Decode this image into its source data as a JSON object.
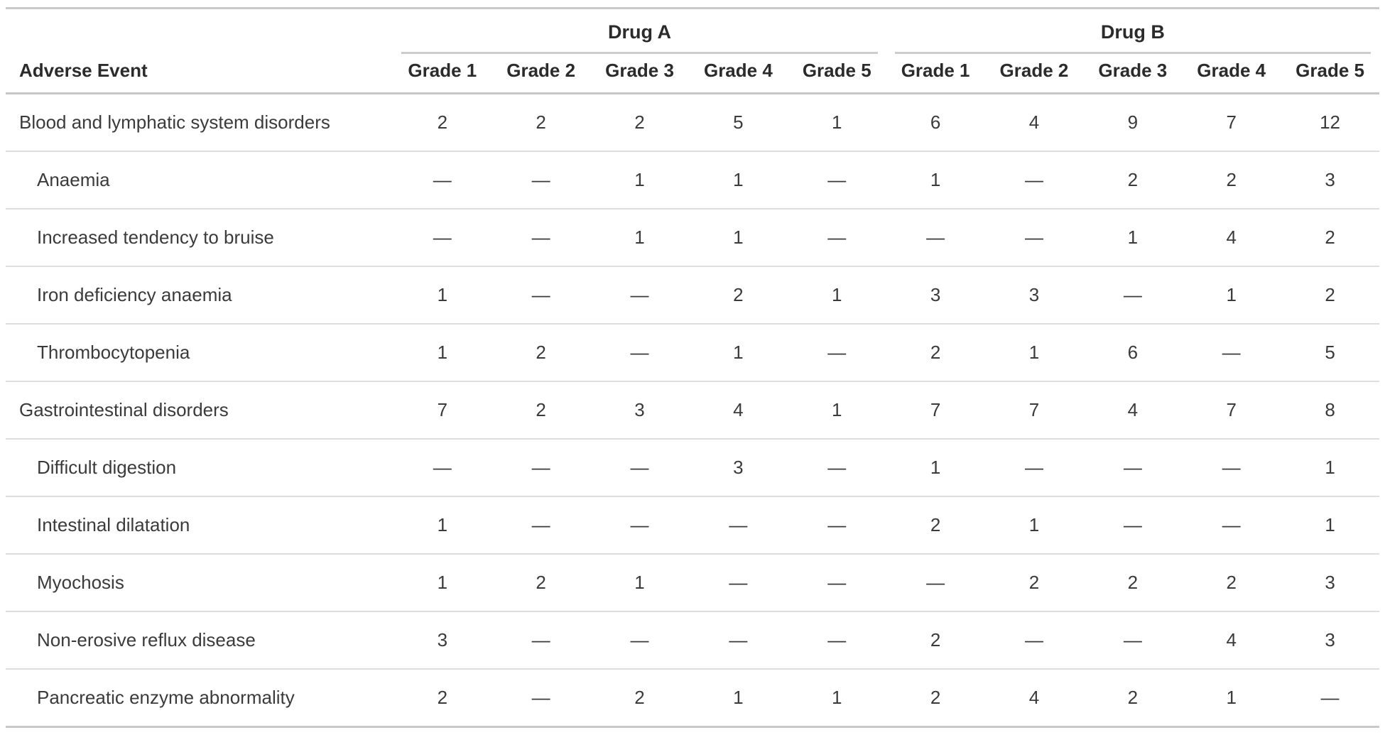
{
  "table": {
    "row_header_label": "Adverse Event",
    "groups": [
      {
        "label": "Drug A"
      },
      {
        "label": "Drug B"
      }
    ],
    "grade_labels": [
      "Grade 1",
      "Grade 2",
      "Grade 3",
      "Grade 4",
      "Grade 5"
    ],
    "empty_marker": "—",
    "colors": {
      "frame_border": "#c9c9c9",
      "header_underline": "#c6c6c6",
      "group_underline": "#cccccc",
      "row_separator": "#dddddd",
      "header_text": "#2b2b2b",
      "body_text": "#3b3b3b"
    },
    "rows": [
      {
        "label": "Blood and lymphatic system disorders",
        "indent": false,
        "drug_a": [
          "2",
          "2",
          "2",
          "5",
          "1"
        ],
        "drug_b": [
          "6",
          "4",
          "9",
          "7",
          "12"
        ]
      },
      {
        "label": "Anaemia",
        "indent": true,
        "drug_a": [
          "—",
          "—",
          "1",
          "1",
          "—"
        ],
        "drug_b": [
          "1",
          "—",
          "2",
          "2",
          "3"
        ]
      },
      {
        "label": "Increased tendency to bruise",
        "indent": true,
        "drug_a": [
          "—",
          "—",
          "1",
          "1",
          "—"
        ],
        "drug_b": [
          "—",
          "—",
          "1",
          "4",
          "2"
        ]
      },
      {
        "label": "Iron deficiency anaemia",
        "indent": true,
        "drug_a": [
          "1",
          "—",
          "—",
          "2",
          "1"
        ],
        "drug_b": [
          "3",
          "3",
          "—",
          "1",
          "2"
        ]
      },
      {
        "label": "Thrombocytopenia",
        "indent": true,
        "drug_a": [
          "1",
          "2",
          "—",
          "1",
          "—"
        ],
        "drug_b": [
          "2",
          "1",
          "6",
          "—",
          "5"
        ]
      },
      {
        "label": "Gastrointestinal disorders",
        "indent": false,
        "drug_a": [
          "7",
          "2",
          "3",
          "4",
          "1"
        ],
        "drug_b": [
          "7",
          "7",
          "4",
          "7",
          "8"
        ]
      },
      {
        "label": "Difficult digestion",
        "indent": true,
        "drug_a": [
          "—",
          "—",
          "—",
          "3",
          "—"
        ],
        "drug_b": [
          "1",
          "—",
          "—",
          "—",
          "1"
        ]
      },
      {
        "label": "Intestinal dilatation",
        "indent": true,
        "drug_a": [
          "1",
          "—",
          "—",
          "—",
          "—"
        ],
        "drug_b": [
          "2",
          "1",
          "—",
          "—",
          "1"
        ]
      },
      {
        "label": "Myochosis",
        "indent": true,
        "drug_a": [
          "1",
          "2",
          "1",
          "—",
          "—"
        ],
        "drug_b": [
          "—",
          "2",
          "2",
          "2",
          "3"
        ]
      },
      {
        "label": "Non-erosive reflux disease",
        "indent": true,
        "drug_a": [
          "3",
          "—",
          "—",
          "—",
          "—"
        ],
        "drug_b": [
          "2",
          "—",
          "—",
          "4",
          "3"
        ]
      },
      {
        "label": "Pancreatic enzyme abnormality",
        "indent": true,
        "drug_a": [
          "2",
          "—",
          "2",
          "1",
          "1"
        ],
        "drug_b": [
          "2",
          "4",
          "2",
          "1",
          "—"
        ]
      }
    ]
  }
}
